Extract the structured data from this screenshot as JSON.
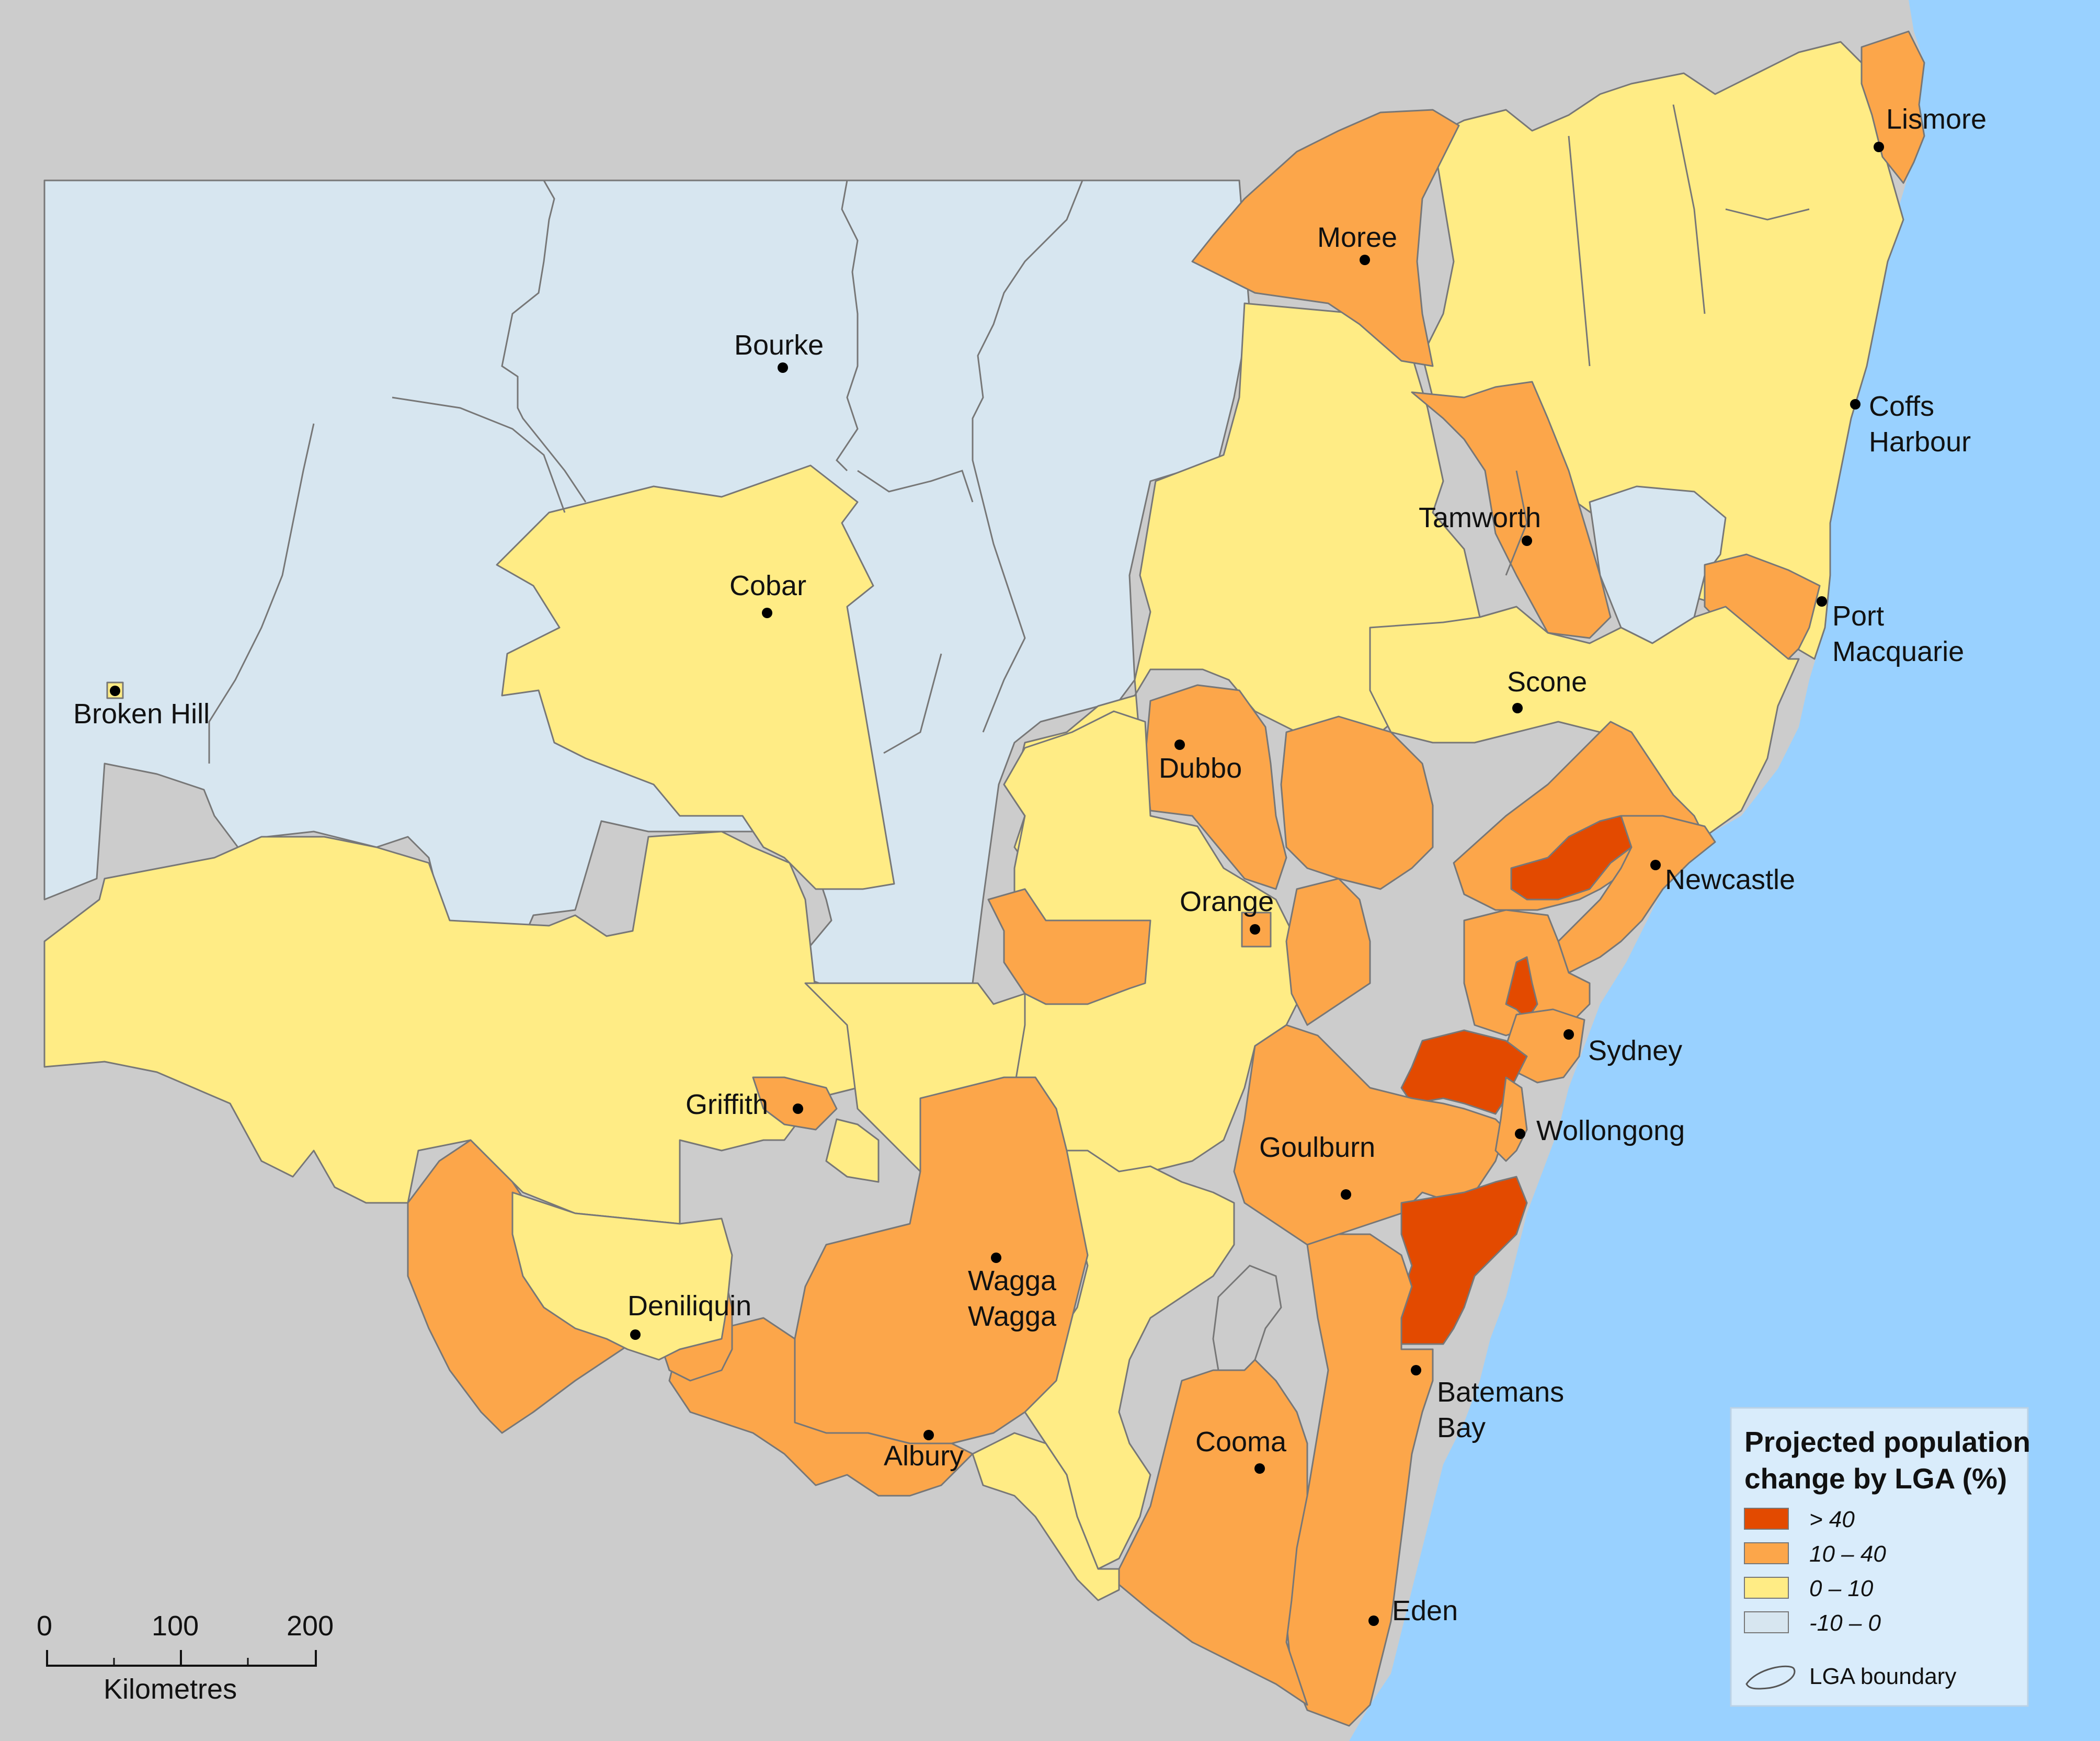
{
  "colors": {
    "background": "#cccccc",
    "ocean": "#99d1ff",
    "gt40": "#e34a00",
    "c10to40": "#fca64a",
    "c0to10": "#ffec85",
    "neg10to0": "#d7e6f0",
    "boundary": "#777777"
  },
  "places": [
    {
      "id": "lismore",
      "name": "Lismore"
    },
    {
      "id": "moree",
      "name": "Moree"
    },
    {
      "id": "bourke",
      "name": "Bourke"
    },
    {
      "id": "coffs",
      "name": "Coffs\nHarbour"
    },
    {
      "id": "tamworth",
      "name": "Tamworth"
    },
    {
      "id": "cobar",
      "name": "Cobar"
    },
    {
      "id": "portmac",
      "name": "Port\nMacquarie"
    },
    {
      "id": "brokenhill",
      "name": "Broken Hill"
    },
    {
      "id": "scone",
      "name": "Scone"
    },
    {
      "id": "dubbo",
      "name": "Dubbo"
    },
    {
      "id": "newcastle",
      "name": "Newcastle"
    },
    {
      "id": "orange",
      "name": "Orange"
    },
    {
      "id": "sydney",
      "name": "Sydney"
    },
    {
      "id": "griffith",
      "name": "Griffith"
    },
    {
      "id": "wollongong",
      "name": "Wollongong"
    },
    {
      "id": "goulburn",
      "name": "Goulburn"
    },
    {
      "id": "wagga",
      "name": "Wagga\nWagga"
    },
    {
      "id": "deniliquin",
      "name": "Deniliquin"
    },
    {
      "id": "batemans",
      "name": "Batemans\nBay"
    },
    {
      "id": "albury",
      "name": "Albury"
    },
    {
      "id": "cooma",
      "name": "Cooma"
    },
    {
      "id": "eden",
      "name": "Eden"
    },
    {
      "id": "canberra",
      "name": ""
    }
  ],
  "legend": {
    "title_line1": "Projected population",
    "title_line2": "change by LGA (%)",
    "classes": [
      {
        "label": "> 40",
        "color": "#e34a00"
      },
      {
        "label": "10 – 40",
        "color": "#fca64a"
      },
      {
        "label": "0 – 10",
        "color": "#ffec85"
      },
      {
        "label": "-10 – 0",
        "color": "#d7e6f0"
      }
    ],
    "boundary_label": "LGA boundary"
  },
  "scale_bar": {
    "ticks": [
      "0",
      "100",
      "200"
    ],
    "unit": "Kilometres"
  }
}
